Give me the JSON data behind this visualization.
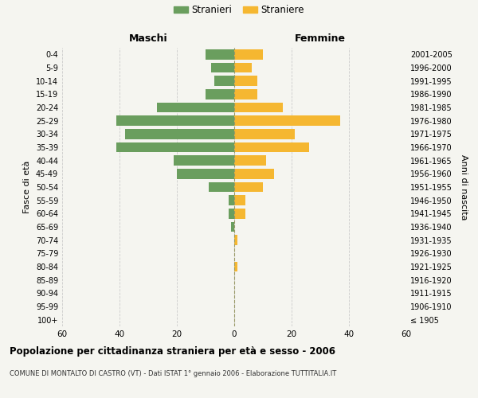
{
  "age_groups": [
    "100+",
    "95-99",
    "90-94",
    "85-89",
    "80-84",
    "75-79",
    "70-74",
    "65-69",
    "60-64",
    "55-59",
    "50-54",
    "45-49",
    "40-44",
    "35-39",
    "30-34",
    "25-29",
    "20-24",
    "15-19",
    "10-14",
    "5-9",
    "0-4"
  ],
  "birth_years": [
    "≤ 1905",
    "1906-1910",
    "1911-1915",
    "1916-1920",
    "1921-1925",
    "1926-1930",
    "1931-1935",
    "1936-1940",
    "1941-1945",
    "1946-1950",
    "1951-1955",
    "1956-1960",
    "1961-1965",
    "1966-1970",
    "1971-1975",
    "1976-1980",
    "1981-1985",
    "1986-1990",
    "1991-1995",
    "1996-2000",
    "2001-2005"
  ],
  "males": [
    0,
    0,
    0,
    0,
    0,
    0,
    0,
    1,
    2,
    2,
    9,
    20,
    21,
    41,
    38,
    41,
    27,
    10,
    7,
    8,
    10
  ],
  "females": [
    0,
    0,
    0,
    0,
    1,
    0,
    1,
    0,
    4,
    4,
    10,
    14,
    11,
    26,
    21,
    37,
    17,
    8,
    8,
    6,
    10
  ],
  "male_color": "#6a9e5e",
  "female_color": "#f5b731",
  "xlim": 60,
  "title": "Popolazione per cittadinanza straniera per età e sesso - 2006",
  "subtitle": "COMUNE DI MONTALTO DI CASTRO (VT) - Dati ISTAT 1° gennaio 2006 - Elaborazione TUTTITALIA.IT",
  "xlabel_left": "Maschi",
  "xlabel_right": "Femmine",
  "ylabel_left": "Fasce di età",
  "ylabel_right": "Anni di nascita",
  "legend_males": "Stranieri",
  "legend_females": "Straniere",
  "background_color": "#f5f5f0",
  "grid_color": "#cccccc"
}
